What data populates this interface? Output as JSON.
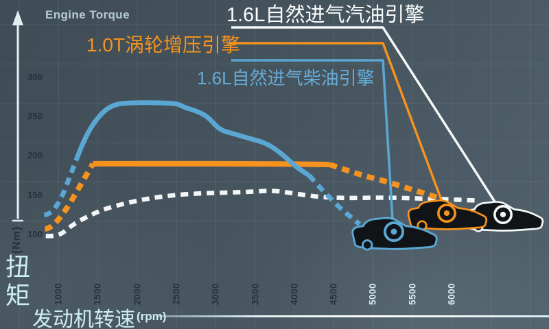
{
  "title": "Engine Torque",
  "legend": {
    "gasoline": {
      "label": "1.6L自然进气汽油引擎",
      "color": "#f4f7f7"
    },
    "turbo": {
      "label": "1.0T涡轮增压引擎",
      "color": "#f6921e"
    },
    "diesel": {
      "label": "1.6L自然进气柴油引擎",
      "color": "#5ba7d4"
    }
  },
  "y_axis": {
    "name": "扭矩",
    "unit": "(Nm)",
    "ticks": [
      300,
      250,
      200,
      150,
      100
    ]
  },
  "x_axis": {
    "name": "发动机转速",
    "unit": "(rpm)",
    "ticks": [
      1000,
      1500,
      2000,
      2500,
      3000,
      3500,
      4000,
      4500,
      5000,
      5500,
      6000
    ]
  },
  "chart_data": {
    "type": "line",
    "title": "Engine Torque",
    "xlabel": "发动机转速 (rpm)",
    "ylabel": "扭矩 (Nm)",
    "xlim": [
      800,
      6600
    ],
    "ylim": [
      85,
      330
    ],
    "x_ticks": [
      1000,
      1500,
      2000,
      2500,
      3000,
      3500,
      4000,
      4500,
      5000,
      5500,
      6000
    ],
    "y_ticks": [
      100,
      150,
      200,
      250,
      300
    ],
    "grid": true,
    "legend_position": "top",
    "series": [
      {
        "id": "gasoline",
        "name": "1.6L自然进气汽油引擎",
        "color": "#f4f7f7",
        "segments": [
          {
            "style": "dashed",
            "points": [
              [
                840,
                98
              ],
              [
                1000,
                97
              ],
              [
                1160,
                111
              ],
              [
                1390,
                124
              ],
              [
                1630,
                134
              ],
              [
                2000,
                143
              ],
              [
                2290,
                148
              ],
              [
                2680,
                152
              ],
              [
                3400,
                154
              ],
              [
                3730,
                156
              ],
              [
                4010,
                152
              ],
              [
                4280,
                148
              ],
              [
                4630,
                146
              ],
              [
                5150,
                147
              ],
              [
                5500,
                146
              ],
              [
                5850,
                145
              ],
              [
                6350,
                143
              ]
            ]
          }
        ]
      },
      {
        "id": "turbo",
        "name": "1.0T涡轮增压引擎",
        "color": "#f6921e",
        "segments": [
          {
            "style": "dashed",
            "points": [
              [
                830,
                107
              ],
              [
                960,
                107
              ],
              [
                1440,
                190
              ]
            ]
          },
          {
            "style": "solid",
            "points": [
              [
                1440,
                190
              ],
              [
                2500,
                190
              ],
              [
                3500,
                190
              ],
              [
                4450,
                189
              ]
            ]
          },
          {
            "style": "dashed",
            "points": [
              [
                4450,
                189
              ],
              [
                4800,
                177
              ],
              [
                5150,
                168
              ],
              [
                5500,
                157
              ],
              [
                5820,
                147
              ]
            ]
          }
        ]
      },
      {
        "id": "diesel",
        "name": "1.6L自然进气柴油引擎",
        "color": "#5ba7d4",
        "segments": [
          {
            "style": "dashed",
            "points": [
              [
                820,
                125
              ],
              [
                960,
                125
              ],
              [
                1240,
                198
              ]
            ]
          },
          {
            "style": "solid",
            "points": [
              [
                1240,
                198
              ],
              [
                1330,
                221
              ],
              [
                1450,
                242
              ],
              [
                1560,
                255
              ],
              [
                1650,
                262
              ],
              [
                1780,
                267
              ],
              [
                2100,
                268
              ],
              [
                2510,
                267
              ],
              [
                2590,
                262
              ],
              [
                2760,
                257
              ],
              [
                2900,
                250
              ],
              [
                3050,
                233
              ],
              [
                3230,
                228
              ],
              [
                3440,
                222
              ],
              [
                3650,
                216
              ],
              [
                3840,
                203
              ],
              [
                4010,
                187
              ],
              [
                4190,
                175
              ]
            ]
          },
          {
            "style": "dashed",
            "points": [
              [
                4190,
                175
              ],
              [
                4450,
                146
              ],
              [
                4670,
                126
              ],
              [
                4830,
                113
              ]
            ]
          }
        ]
      }
    ]
  }
}
